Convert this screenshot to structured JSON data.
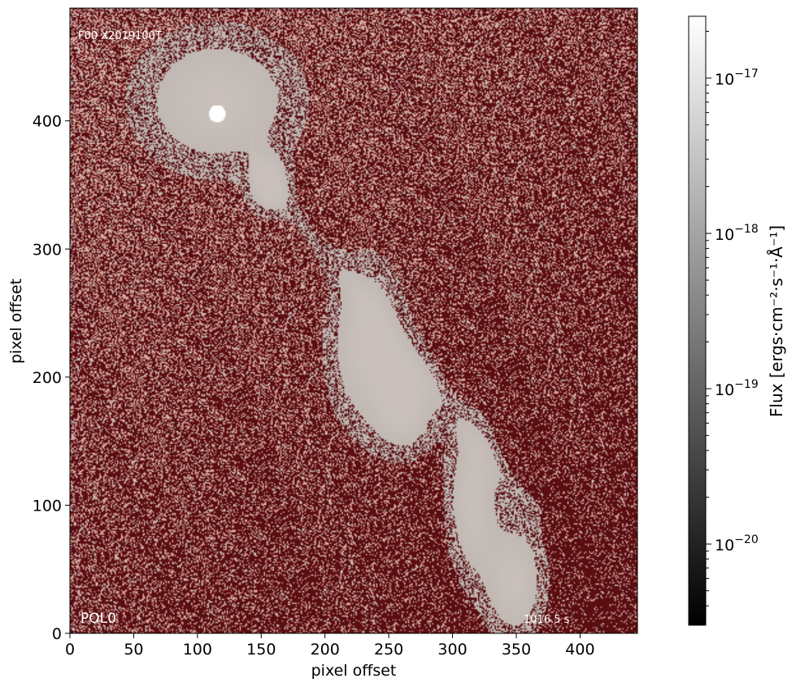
{
  "chart_data": {
    "type": "heatmap",
    "title": "",
    "xlabel": "pixel offset",
    "ylabel": "pixel offset",
    "xlim": [
      0,
      445
    ],
    "ylim": [
      0,
      488
    ],
    "xticks": [
      0,
      50,
      100,
      150,
      200,
      250,
      300,
      350,
      400
    ],
    "yticks": [
      0,
      100,
      200,
      300,
      400
    ],
    "colormap": {
      "background": "#5a0e12",
      "speckle": "#d89f92",
      "source": "#c8bfba",
      "peak": "#ffffff"
    },
    "annotations": {
      "top_left": "F00 X2019100T",
      "bottom_left": "POL0",
      "bottom_right": "1016.5 s"
    },
    "colorbar": {
      "label": "Flux [ergs·cm⁻²·s⁻¹·Å⁻¹]",
      "scale": "log",
      "vmin": 3e-21,
      "vmax": 2.5e-17,
      "ticks": [
        {
          "value": 1e-17,
          "label": "10",
          "exp": "−17"
        },
        {
          "value": 1e-18,
          "label": "10",
          "exp": "−18"
        },
        {
          "value": 1e-19,
          "label": "10",
          "exp": "−19"
        },
        {
          "value": 1e-20,
          "label": "10",
          "exp": "−20"
        }
      ],
      "colors": [
        "#000000",
        "#ffffff"
      ]
    },
    "features": [
      {
        "name": "bright knot",
        "x": 115,
        "y": 405,
        "peak": true
      },
      {
        "name": "diffuse halo",
        "x": 115,
        "y": 415,
        "rx": 58,
        "ry": 50
      },
      {
        "name": "jet segment",
        "x": 155,
        "y": 350,
        "rx": 14,
        "ry": 20
      },
      {
        "name": "jet segment",
        "x": 232,
        "y": 225,
        "rx": 28,
        "ry": 60
      },
      {
        "name": "jet segment",
        "x": 263,
        "y": 178,
        "rx": 22,
        "ry": 35
      },
      {
        "name": "jet segment",
        "x": 315,
        "y": 105,
        "rx": 18,
        "ry": 55
      },
      {
        "name": "jet segment",
        "x": 348,
        "y": 40,
        "rx": 22,
        "ry": 42
      }
    ]
  }
}
